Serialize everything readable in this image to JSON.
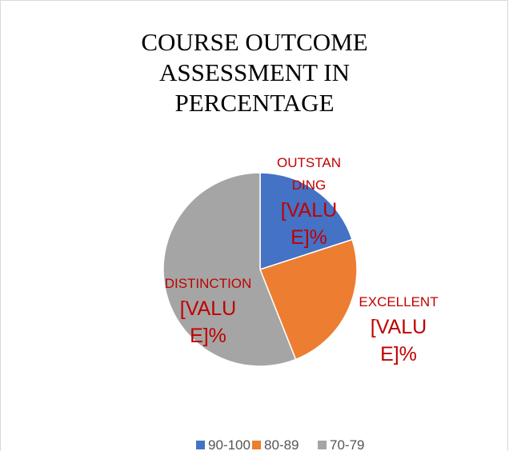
{
  "chart_data": {
    "type": "pie",
    "title": "COURSE OUTCOME ASSESSMENT IN PERCENTAGE",
    "categories": [
      "90-100",
      "80-89",
      "70-79"
    ],
    "label_names": [
      "OUTSTANDING",
      "EXCELLENT",
      "DISTINCTION"
    ],
    "values": [
      20,
      24,
      56
    ],
    "value_labels": [
      "[VALUE]%",
      "[VALUE]%",
      "[VALUE]%"
    ],
    "colors": [
      "#4472c4",
      "#ed7d31",
      "#a5a5a5"
    ],
    "legend": "bottom"
  }
}
